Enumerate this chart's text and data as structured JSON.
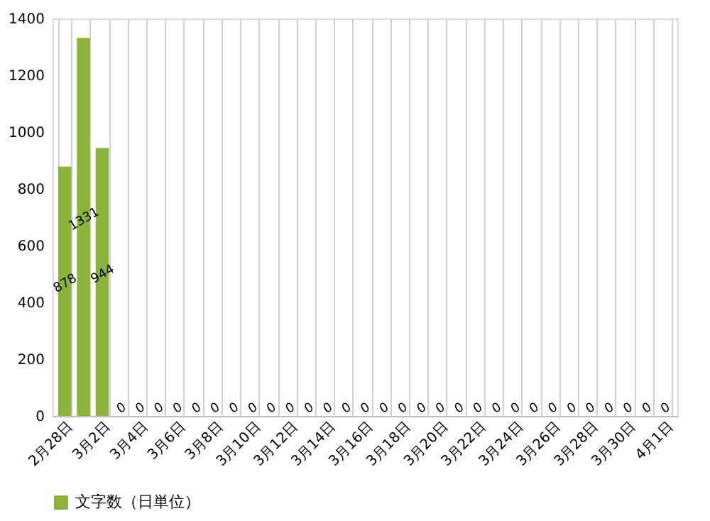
{
  "chart_data": {
    "type": "bar",
    "categories": [
      "2月28日",
      null,
      "3月2日",
      null,
      "3月4日",
      null,
      "3月6日",
      null,
      "3月8日",
      null,
      "3月10日",
      null,
      "3月12日",
      null,
      "3月14日",
      null,
      "3月16日",
      null,
      "3月18日",
      null,
      "3月20日",
      null,
      "3月22日",
      null,
      "3月24日",
      null,
      "3月26日",
      null,
      "3月28日",
      null,
      "3月30日",
      null,
      "4月1日"
    ],
    "series": [
      {
        "name": "文字数（日単位）",
        "color": "#8cb43c",
        "values": [
          878,
          1331,
          944,
          0,
          0,
          0,
          0,
          0,
          0,
          0,
          0,
          0,
          0,
          0,
          0,
          0,
          0,
          0,
          0,
          0,
          0,
          0,
          0,
          0,
          0,
          0,
          0,
          0,
          0,
          0,
          0,
          0,
          0
        ]
      }
    ],
    "ylim": [
      0,
      1400
    ],
    "yticks": [
      0,
      200,
      400,
      600,
      800,
      1000,
      1200,
      1400
    ],
    "grid": "x",
    "legend": "bottom",
    "data_labels": true
  }
}
